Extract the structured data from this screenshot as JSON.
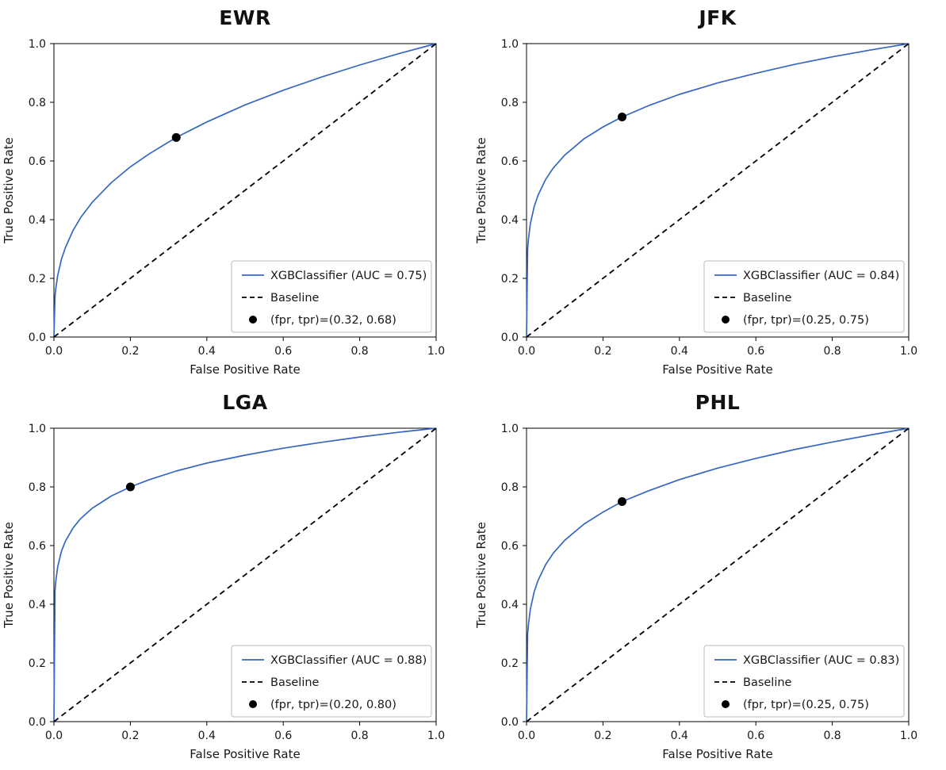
{
  "figure": {
    "kind": "roc-curve-grid",
    "rows": 2,
    "cols": 2
  },
  "chart_data": [
    {
      "type": "line",
      "id": "ewr",
      "title": "EWR",
      "xlabel": "False Positive Rate",
      "ylabel": "True Positive Rate",
      "xlim": [
        0,
        1
      ],
      "ylim": [
        0,
        1
      ],
      "xticks": [
        "0.0",
        "0.2",
        "0.4",
        "0.6",
        "0.8",
        "1.0"
      ],
      "yticks": [
        "0.0",
        "0.2",
        "0.4",
        "0.6",
        "0.8",
        "1.0"
      ],
      "grid": false,
      "legend_position": "lower right",
      "auc": 0.75,
      "marker_point": [
        0.32,
        0.68
      ],
      "series": [
        {
          "name": "XGBClassifier (AUC = 0.75)",
          "style": "solid",
          "color": "#3567c0",
          "points": [
            [
              0,
              0
            ],
            [
              0.003,
              0.14
            ],
            [
              0.005,
              0.166
            ],
            [
              0.01,
              0.21
            ],
            [
              0.02,
              0.266
            ],
            [
              0.03,
              0.305
            ],
            [
              0.05,
              0.363
            ],
            [
              0.07,
              0.407
            ],
            [
              0.1,
              0.459
            ],
            [
              0.15,
              0.526
            ],
            [
              0.2,
              0.58
            ],
            [
              0.25,
              0.625
            ],
            [
              0.32,
              0.68
            ],
            [
              0.4,
              0.733
            ],
            [
              0.5,
              0.791
            ],
            [
              0.6,
              0.841
            ],
            [
              0.7,
              0.886
            ],
            [
              0.8,
              0.927
            ],
            [
              0.9,
              0.965
            ],
            [
              1,
              1
            ]
          ]
        },
        {
          "name": "Baseline",
          "style": "dashed",
          "color": "#000000",
          "points": [
            [
              0,
              0
            ],
            [
              1,
              1
            ]
          ]
        },
        {
          "name": "(fpr, tpr)=(0.32, 0.68)",
          "style": "marker",
          "color": "#000000",
          "points": [
            [
              0.32,
              0.68
            ]
          ]
        }
      ]
    },
    {
      "type": "line",
      "id": "jfk",
      "title": "JFK",
      "xlabel": "False Positive Rate",
      "ylabel": "True Positive Rate",
      "xlim": [
        0,
        1
      ],
      "ylim": [
        0,
        1
      ],
      "xticks": [
        "0.0",
        "0.2",
        "0.4",
        "0.6",
        "0.8",
        "1.0"
      ],
      "yticks": [
        "0.0",
        "0.2",
        "0.4",
        "0.6",
        "0.8",
        "1.0"
      ],
      "grid": false,
      "legend_position": "lower right",
      "auc": 0.84,
      "marker_point": [
        0.25,
        0.75
      ],
      "series": [
        {
          "name": "XGBClassifier (AUC = 0.84)",
          "style": "solid",
          "color": "#3567c0",
          "points": [
            [
              0,
              0
            ],
            [
              0.003,
              0.3
            ],
            [
              0.005,
              0.333
            ],
            [
              0.01,
              0.385
            ],
            [
              0.02,
              0.444
            ],
            [
              0.03,
              0.483
            ],
            [
              0.05,
              0.537
            ],
            [
              0.07,
              0.576
            ],
            [
              0.1,
              0.62
            ],
            [
              0.15,
              0.675
            ],
            [
              0.2,
              0.716
            ],
            [
              0.25,
              0.75
            ],
            [
              0.32,
              0.789
            ],
            [
              0.4,
              0.827
            ],
            [
              0.5,
              0.866
            ],
            [
              0.6,
              0.899
            ],
            [
              0.7,
              0.929
            ],
            [
              0.8,
              0.955
            ],
            [
              0.9,
              0.978
            ],
            [
              1,
              1
            ]
          ]
        },
        {
          "name": "Baseline",
          "style": "dashed",
          "color": "#000000",
          "points": [
            [
              0,
              0
            ],
            [
              1,
              1
            ]
          ]
        },
        {
          "name": "(fpr, tpr)=(0.25, 0.75)",
          "style": "marker",
          "color": "#000000",
          "points": [
            [
              0.25,
              0.75
            ]
          ]
        }
      ]
    },
    {
      "type": "line",
      "id": "lga",
      "title": "LGA",
      "xlabel": "False Positive Rate",
      "ylabel": "True Positive Rate",
      "xlim": [
        0,
        1
      ],
      "ylim": [
        0,
        1
      ],
      "xticks": [
        "0.0",
        "0.2",
        "0.4",
        "0.6",
        "0.8",
        "1.0"
      ],
      "yticks": [
        "0.0",
        "0.2",
        "0.4",
        "0.6",
        "0.8",
        "1.0"
      ],
      "grid": false,
      "legend_position": "lower right",
      "auc": 0.88,
      "marker_point": [
        0.2,
        0.8
      ],
      "series": [
        {
          "name": "XGBClassifier (AUC = 0.88)",
          "style": "solid",
          "color": "#3567c0",
          "points": [
            [
              0,
              0
            ],
            [
              0.003,
              0.447
            ],
            [
              0.005,
              0.48
            ],
            [
              0.01,
              0.528
            ],
            [
              0.02,
              0.582
            ],
            [
              0.03,
              0.615
            ],
            [
              0.05,
              0.66
            ],
            [
              0.07,
              0.692
            ],
            [
              0.1,
              0.727
            ],
            [
              0.15,
              0.769
            ],
            [
              0.2,
              0.8
            ],
            [
              0.25,
              0.825
            ],
            [
              0.32,
              0.854
            ],
            [
              0.4,
              0.881
            ],
            [
              0.5,
              0.908
            ],
            [
              0.6,
              0.932
            ],
            [
              0.7,
              0.952
            ],
            [
              0.8,
              0.97
            ],
            [
              0.9,
              0.986
            ],
            [
              1,
              1
            ]
          ]
        },
        {
          "name": "Baseline",
          "style": "dashed",
          "color": "#000000",
          "points": [
            [
              0,
              0
            ],
            [
              1,
              1
            ]
          ]
        },
        {
          "name": "(fpr, tpr)=(0.20, 0.80)",
          "style": "marker",
          "color": "#000000",
          "points": [
            [
              0.2,
              0.8
            ]
          ]
        }
      ]
    },
    {
      "type": "line",
      "id": "phl",
      "title": "PHL",
      "xlabel": "False Positive Rate",
      "ylabel": "True Positive Rate",
      "xlim": [
        0,
        1
      ],
      "ylim": [
        0,
        1
      ],
      "xticks": [
        "0.0",
        "0.2",
        "0.4",
        "0.6",
        "0.8",
        "1.0"
      ],
      "yticks": [
        "0.0",
        "0.2",
        "0.4",
        "0.6",
        "0.8",
        "1.0"
      ],
      "grid": false,
      "legend_position": "lower right",
      "auc": 0.83,
      "marker_point": [
        0.25,
        0.75
      ],
      "series": [
        {
          "name": "XGBClassifier (AUC = 0.83)",
          "style": "solid",
          "color": "#3567c0",
          "points": [
            [
              0,
              0
            ],
            [
              0.003,
              0.298
            ],
            [
              0.005,
              0.331
            ],
            [
              0.01,
              0.383
            ],
            [
              0.02,
              0.442
            ],
            [
              0.03,
              0.481
            ],
            [
              0.05,
              0.535
            ],
            [
              0.07,
              0.574
            ],
            [
              0.1,
              0.618
            ],
            [
              0.15,
              0.673
            ],
            [
              0.2,
              0.714
            ],
            [
              0.25,
              0.75
            ],
            [
              0.32,
              0.787
            ],
            [
              0.4,
              0.825
            ],
            [
              0.5,
              0.864
            ],
            [
              0.6,
              0.897
            ],
            [
              0.7,
              0.927
            ],
            [
              0.8,
              0.953
            ],
            [
              0.9,
              0.977
            ],
            [
              1,
              1
            ]
          ]
        },
        {
          "name": "Baseline",
          "style": "dashed",
          "color": "#000000",
          "points": [
            [
              0,
              0
            ],
            [
              1,
              1
            ]
          ]
        },
        {
          "name": "(fpr, tpr)=(0.25, 0.75)",
          "style": "marker",
          "color": "#000000",
          "points": [
            [
              0.25,
              0.75
            ]
          ]
        }
      ]
    }
  ]
}
